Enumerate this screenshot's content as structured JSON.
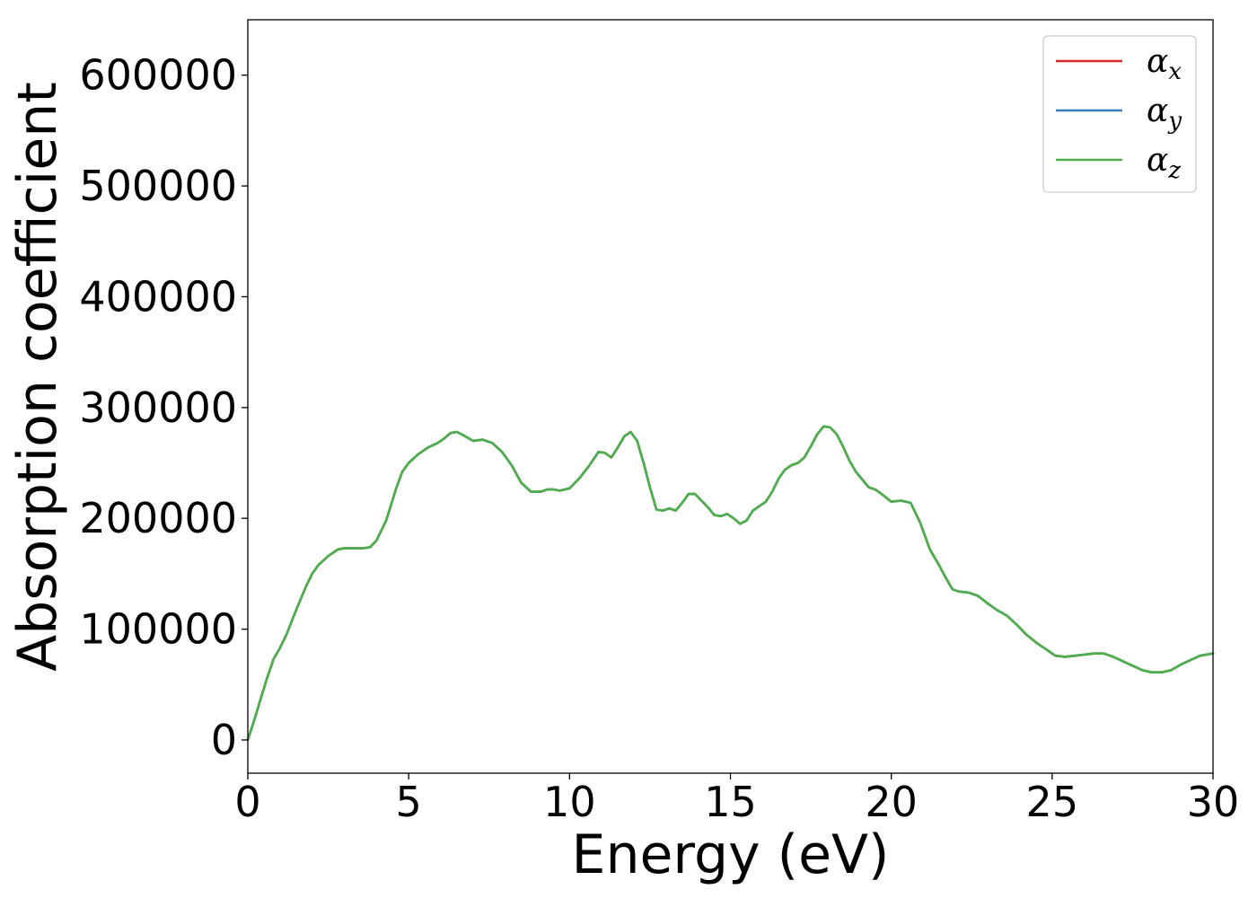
{
  "chart_data": {
    "type": "line",
    "xlabel": "Energy (eV)",
    "ylabel": "Absorption coefficient",
    "xlim": [
      0,
      30
    ],
    "ylim": [
      -30000,
      650000
    ],
    "xticks": [
      0,
      5,
      10,
      15,
      20,
      25,
      30
    ],
    "xtick_labels": [
      "0",
      "5",
      "10",
      "15",
      "20",
      "25",
      "30"
    ],
    "yticks": [
      0,
      100000,
      200000,
      300000,
      400000,
      500000,
      600000
    ],
    "ytick_labels": [
      "0",
      "100000",
      "200000",
      "300000",
      "400000",
      "500000",
      "600000"
    ],
    "grid": false,
    "legend_position": "top-right",
    "x": [
      0,
      0.2,
      0.4,
      0.6,
      0.8,
      1.0,
      1.2,
      1.4,
      1.6,
      1.8,
      2.0,
      2.2,
      2.5,
      2.8,
      3.0,
      3.3,
      3.6,
      3.8,
      4.0,
      4.3,
      4.6,
      4.8,
      5.0,
      5.3,
      5.6,
      5.9,
      6.1,
      6.3,
      6.5,
      6.7,
      7.0,
      7.3,
      7.6,
      7.9,
      8.2,
      8.5,
      8.8,
      9.1,
      9.3,
      9.5,
      9.7,
      10.0,
      10.3,
      10.6,
      10.9,
      11.1,
      11.3,
      11.5,
      11.7,
      11.9,
      12.1,
      12.3,
      12.5,
      12.7,
      12.9,
      13.1,
      13.3,
      13.5,
      13.7,
      13.9,
      14.1,
      14.3,
      14.5,
      14.7,
      14.9,
      15.1,
      15.3,
      15.5,
      15.7,
      15.9,
      16.1,
      16.3,
      16.5,
      16.7,
      16.9,
      17.1,
      17.3,
      17.5,
      17.7,
      17.9,
      18.1,
      18.3,
      18.5,
      18.7,
      18.9,
      19.1,
      19.3,
      19.5,
      19.7,
      20.0,
      20.3,
      20.6,
      20.9,
      21.2,
      21.5,
      21.7,
      21.9,
      22.1,
      22.4,
      22.7,
      23.0,
      23.3,
      23.6,
      23.9,
      24.2,
      24.5,
      24.8,
      25.1,
      25.4,
      25.7,
      26.0,
      26.3,
      26.6,
      26.9,
      27.2,
      27.5,
      27.8,
      28.1,
      28.4,
      28.7,
      29.0,
      29.3,
      29.6,
      30.0
    ],
    "series": [
      {
        "name": "α_x",
        "name_main": "α",
        "name_sub": "x",
        "color": "#d62728",
        "values": [
          0,
          18000,
          37000,
          56000,
          73000,
          83000,
          95000,
          110000,
          124000,
          138000,
          150000,
          158000,
          166000,
          172000,
          173000,
          173000,
          173000,
          174000,
          180000,
          198000,
          226000,
          242000,
          250000,
          258000,
          264000,
          268000,
          272000,
          277000,
          278000,
          275000,
          270000,
          271000,
          268000,
          260000,
          248000,
          232000,
          224000,
          224000,
          226000,
          226000,
          225000,
          227000,
          236000,
          247000,
          260000,
          259000,
          255000,
          264000,
          274000,
          278000,
          270000,
          250000,
          228000,
          208000,
          207000,
          209000,
          207000,
          214000,
          222000,
          222000,
          216000,
          210000,
          203000,
          202000,
          204000,
          200000,
          195000,
          198000,
          207000,
          211000,
          215000,
          224000,
          236000,
          244000,
          248000,
          250000,
          255000,
          265000,
          276000,
          283000,
          282000,
          276000,
          265000,
          252000,
          242000,
          235000,
          228000,
          226000,
          222000,
          215000,
          216000,
          214000,
          196000,
          172000,
          157000,
          146000,
          136000,
          134000,
          133000,
          130000,
          123000,
          117000,
          112000,
          104000,
          95000,
          88000,
          82000,
          76000,
          75000,
          76000,
          77000,
          78000,
          78000,
          75000,
          71000,
          67000,
          63000,
          61000,
          61000,
          63000,
          68000,
          72000,
          76000,
          78000
        ]
      },
      {
        "name": "α_y",
        "name_main": "α",
        "name_sub": "y",
        "color": "#377eb8",
        "values": [
          0,
          18000,
          37000,
          56000,
          73000,
          83000,
          95000,
          110000,
          124000,
          138000,
          150000,
          158000,
          166000,
          172000,
          173000,
          173000,
          173000,
          174000,
          180000,
          198000,
          226000,
          242000,
          250000,
          258000,
          264000,
          268000,
          272000,
          277000,
          278000,
          275000,
          270000,
          271000,
          268000,
          260000,
          248000,
          232000,
          224000,
          224000,
          226000,
          226000,
          225000,
          227000,
          236000,
          247000,
          260000,
          259000,
          255000,
          264000,
          274000,
          278000,
          270000,
          250000,
          228000,
          208000,
          207000,
          209000,
          207000,
          214000,
          222000,
          222000,
          216000,
          210000,
          203000,
          202000,
          204000,
          200000,
          195000,
          198000,
          207000,
          211000,
          215000,
          224000,
          236000,
          244000,
          248000,
          250000,
          255000,
          265000,
          276000,
          283000,
          282000,
          276000,
          265000,
          252000,
          242000,
          235000,
          228000,
          226000,
          222000,
          215000,
          216000,
          214000,
          196000,
          172000,
          157000,
          146000,
          136000,
          134000,
          133000,
          130000,
          123000,
          117000,
          112000,
          104000,
          95000,
          88000,
          82000,
          76000,
          75000,
          76000,
          77000,
          78000,
          78000,
          75000,
          71000,
          67000,
          63000,
          61000,
          61000,
          63000,
          68000,
          72000,
          76000,
          78000
        ]
      },
      {
        "name": "α_z",
        "name_main": "α",
        "name_sub": "z",
        "color": "#4daf4a",
        "values": [
          0,
          18000,
          37000,
          56000,
          73000,
          83000,
          95000,
          110000,
          124000,
          138000,
          150000,
          158000,
          166000,
          172000,
          173000,
          173000,
          173000,
          174000,
          180000,
          198000,
          226000,
          242000,
          250000,
          258000,
          264000,
          268000,
          272000,
          277000,
          278000,
          275000,
          270000,
          271000,
          268000,
          260000,
          248000,
          232000,
          224000,
          224000,
          226000,
          226000,
          225000,
          227000,
          236000,
          247000,
          260000,
          259000,
          255000,
          264000,
          274000,
          278000,
          270000,
          250000,
          228000,
          208000,
          207000,
          209000,
          207000,
          214000,
          222000,
          222000,
          216000,
          210000,
          203000,
          202000,
          204000,
          200000,
          195000,
          198000,
          207000,
          211000,
          215000,
          224000,
          236000,
          244000,
          248000,
          250000,
          255000,
          265000,
          276000,
          283000,
          282000,
          276000,
          265000,
          252000,
          242000,
          235000,
          228000,
          226000,
          222000,
          215000,
          216000,
          214000,
          196000,
          172000,
          157000,
          146000,
          136000,
          134000,
          133000,
          130000,
          123000,
          117000,
          112000,
          104000,
          95000,
          88000,
          82000,
          76000,
          75000,
          76000,
          77000,
          78000,
          78000,
          75000,
          71000,
          67000,
          63000,
          61000,
          61000,
          63000,
          68000,
          72000,
          76000,
          78000
        ]
      }
    ]
  }
}
